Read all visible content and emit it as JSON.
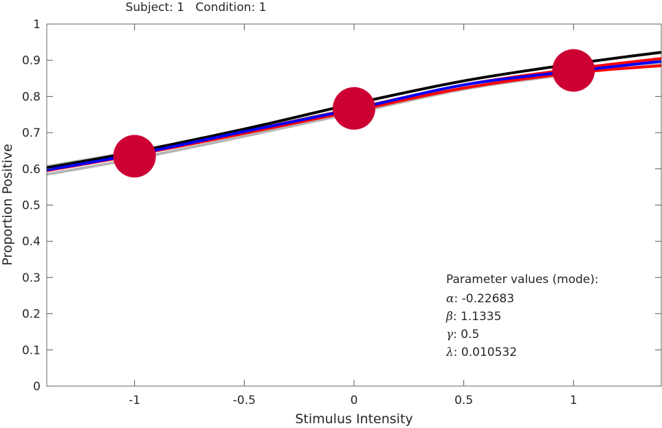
{
  "chart_data": {
    "type": "line",
    "title": "Subject: 1   Condition: 1",
    "xlabel": "Stimulus Intensity",
    "ylabel": "Proportion Positive",
    "xlim": [
      -1.4,
      1.4
    ],
    "ylim": [
      0,
      1
    ],
    "xticks": [
      -1,
      -0.5,
      0,
      0.5,
      1
    ],
    "xtick_labels": [
      "-1",
      "-0.5",
      "0",
      "0.5",
      "1"
    ],
    "yticks": [
      0,
      0.1,
      0.2,
      0.3,
      0.4,
      0.5,
      0.6,
      0.7,
      0.8,
      0.9,
      1
    ],
    "ytick_labels": [
      "0",
      "0.1",
      "0.2",
      "0.3",
      "0.4",
      "0.5",
      "0.6",
      "0.7",
      "0.8",
      "0.9",
      "1"
    ],
    "grid": false,
    "curve_x": [
      -1.4,
      -1,
      -0.5,
      0,
      0.5,
      1,
      1.4
    ],
    "series": [
      {
        "color": "#b4b4b4",
        "values": [
          0.607,
          0.648,
          0.705,
          0.768,
          0.83,
          0.875,
          0.9
        ]
      },
      {
        "color": "#b4b4b4",
        "values": [
          0.585,
          0.628,
          0.69,
          0.755,
          0.82,
          0.863,
          0.892
        ]
      },
      {
        "color": "#ff0000",
        "values": [
          0.6,
          0.643,
          0.703,
          0.766,
          0.832,
          0.876,
          0.905
        ]
      },
      {
        "color": "#ff0000",
        "values": [
          0.595,
          0.638,
          0.698,
          0.76,
          0.823,
          0.865,
          0.885
        ]
      },
      {
        "color": "#000000",
        "values": [
          0.603,
          0.647,
          0.71,
          0.78,
          0.843,
          0.89,
          0.922
        ]
      },
      {
        "color": "#0000ff",
        "values": [
          0.597,
          0.64,
          0.703,
          0.765,
          0.832,
          0.87,
          0.897
        ]
      }
    ],
    "data_points": {
      "color": "#cc0033",
      "x": [
        -1,
        0,
        1
      ],
      "y": [
        0.635,
        0.767,
        0.872
      ]
    },
    "annotation": {
      "heading": "Parameter values (mode):",
      "params": [
        {
          "symbol": "α",
          "value": ": -0.22683"
        },
        {
          "symbol": "β",
          "value": ": 1.1335"
        },
        {
          "symbol": "γ",
          "value": ": 0.5"
        },
        {
          "symbol": "λ",
          "value": ": 0.010532"
        }
      ]
    }
  }
}
